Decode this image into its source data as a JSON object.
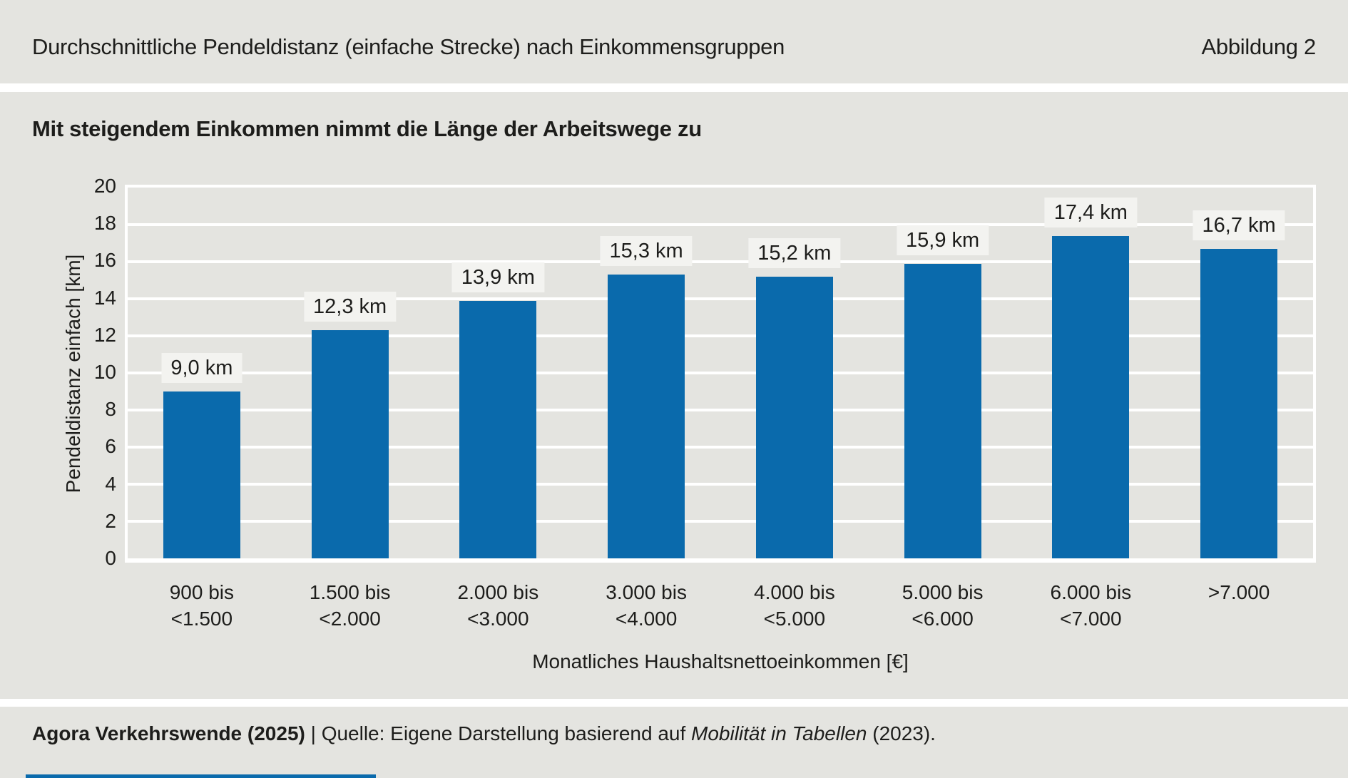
{
  "header": {
    "title": "Durchschnittliche Pendeldistanz (einfache Strecke) nach Einkommensgruppen",
    "figure_label": "Abbildung 2"
  },
  "chart_data": {
    "type": "bar",
    "title": "Mit steigendem Einkommen nimmt die Länge der Arbeitswege zu",
    "categories": [
      [
        "900 bis",
        "<1.500"
      ],
      [
        "1.500 bis",
        "<2.000"
      ],
      [
        "2.000 bis",
        "<3.000"
      ],
      [
        "3.000 bis",
        "<4.000"
      ],
      [
        "4.000 bis",
        "<5.000"
      ],
      [
        "5.000 bis",
        "<6.000"
      ],
      [
        "6.000 bis",
        "<7.000"
      ],
      [
        ">7.000"
      ]
    ],
    "values": [
      9.0,
      12.3,
      13.9,
      15.3,
      15.2,
      15.9,
      17.4,
      16.7
    ],
    "value_labels": [
      "9,0 km",
      "12,3 km",
      "13,9 km",
      "15,3 km",
      "15,2 km",
      "15,9 km",
      "17,4 km",
      "16,7 km"
    ],
    "xlabel": "Monatliches Haushaltsnettoeinkommen [€]",
    "ylabel": "Pendeldistanz einfach [km]",
    "ylim": [
      0,
      20
    ],
    "yticks": [
      0,
      2,
      4,
      6,
      8,
      10,
      12,
      14,
      16,
      18,
      20
    ],
    "grid": "horizontal-white-every-2",
    "legend": "none",
    "bar_color": "#0a6aac"
  },
  "footer": {
    "publisher": "Agora Verkehrswende (2025)",
    "separator": " | ",
    "source_prefix": "Quelle: Eigene Darstellung basierend auf ",
    "source_work": "Mobilität in Tabellen",
    "source_suffix": " (2023)."
  },
  "colors": {
    "background": "#e4e4e0",
    "separator": "#ffffff",
    "bar": "#0a6aac",
    "label_box": "#f3f3f0",
    "text": "#1d1d1b",
    "accent": "#0a6aac"
  }
}
